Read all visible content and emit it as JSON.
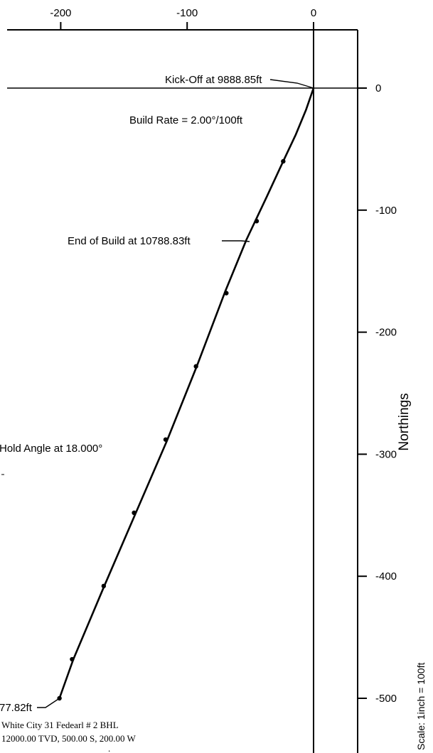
{
  "chart_data": {
    "type": "line",
    "x_ticks": [
      -200,
      -100,
      0
    ],
    "y_ticks": [
      0,
      -100,
      -200,
      -300,
      -400,
      -500
    ],
    "xlim": [
      -250,
      35
    ],
    "ylim": [
      -535,
      65
    ],
    "ylabel": "Northings",
    "scale_label": "Scale: 1inch = 100ft",
    "grid": false,
    "series": [
      {
        "points": [
          {
            "x": 0,
            "y": 0
          },
          {
            "x": -6,
            "y": -18
          },
          {
            "x": -14,
            "y": -38
          },
          {
            "x": -24,
            "y": -60
          },
          {
            "x": -37,
            "y": -89
          },
          {
            "x": -53,
            "y": -124
          },
          {
            "x": -70,
            "y": -167
          },
          {
            "x": -92,
            "y": -227
          },
          {
            "x": -116,
            "y": -289
          },
          {
            "x": -141,
            "y": -349
          },
          {
            "x": -166,
            "y": -409
          },
          {
            "x": -190,
            "y": -468
          },
          {
            "x": -201,
            "y": -500
          }
        ],
        "markers": [
          {
            "x": -24,
            "y": -60
          },
          {
            "x": -45,
            "y": -109
          },
          {
            "x": -69,
            "y": -168
          },
          {
            "x": -93,
            "y": -228
          },
          {
            "x": -117,
            "y": -288
          },
          {
            "x": -142,
            "y": -348
          },
          {
            "x": -166,
            "y": -408
          },
          {
            "x": -191,
            "y": -468
          },
          {
            "x": -201,
            "y": -500
          }
        ]
      }
    ],
    "annotations": [
      {
        "text": "Kick-Off at 9888.85ft",
        "x": 0,
        "y": 0,
        "leader": true
      },
      {
        "text": "Build Rate = 2.00°/100ft",
        "x": null,
        "y": null,
        "leader": false
      },
      {
        "text": "End of Build at 10788.83ft",
        "x": -53,
        "y": -124,
        "leader": true
      },
      {
        "text": "Hold Angle at 18.000°",
        "x": null,
        "y": null,
        "leader": false
      },
      {
        "text": "77.82ft",
        "x": -201,
        "y": -500,
        "leader": true
      }
    ],
    "target_label": [
      "White City 31 Fedearl # 2 BHL",
      "12000.00 TVD, 500.00 S, 200.00 W"
    ]
  }
}
